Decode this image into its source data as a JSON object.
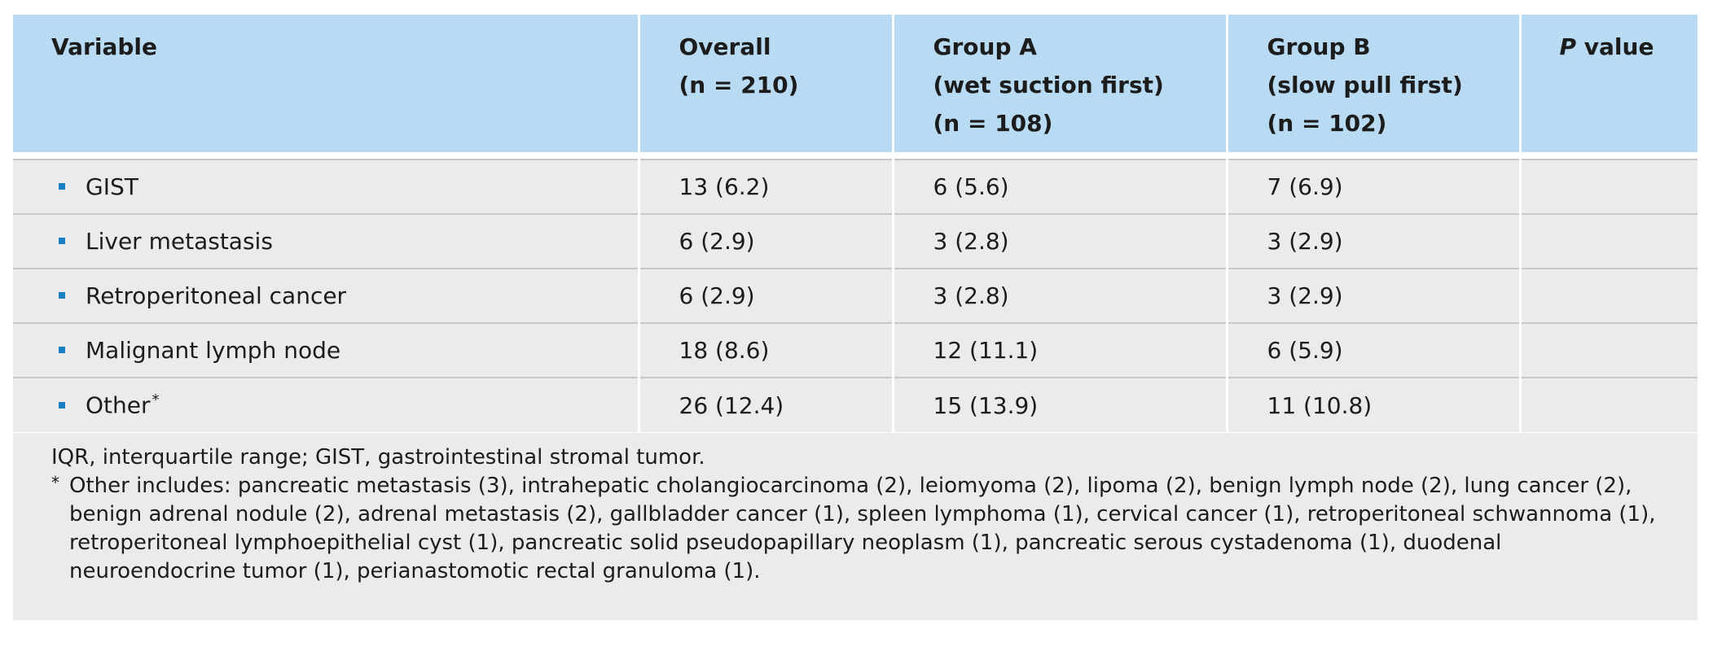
{
  "table": {
    "headers": {
      "variable": "Variable",
      "overall": {
        "line1": "Overall",
        "line2": "(n = 210)"
      },
      "group_a": {
        "line1": "Group A",
        "line2": "(wet suction first)",
        "line3": "(n = 108)"
      },
      "group_b": {
        "line1": "Group B",
        "line2": "(slow pull first)",
        "line3": "(n = 102)"
      },
      "p_value": {
        "italic": "P",
        "rest": " value"
      }
    },
    "rows": [
      {
        "variable": "GIST",
        "marker": "",
        "overall": "13 (6.2)",
        "group_a": "6 (5.6)",
        "group_b": "7 (6.9)",
        "p_value": ""
      },
      {
        "variable": "Liver metastasis",
        "marker": "",
        "overall": "6 (2.9)",
        "group_a": "3 (2.8)",
        "group_b": "3 (2.9)",
        "p_value": ""
      },
      {
        "variable": "Retroperitoneal cancer",
        "marker": "",
        "overall": "6 (2.9)",
        "group_a": "3 (2.8)",
        "group_b": "3 (2.9)",
        "p_value": ""
      },
      {
        "variable": "Malignant lymph node",
        "marker": "",
        "overall": "18 (8.6)",
        "group_a": "12 (11.1)",
        "group_b": "6 (5.9)",
        "p_value": ""
      },
      {
        "variable": "Other",
        "marker": "*",
        "overall": "26 (12.4)",
        "group_a": "15 (13.9)",
        "group_b": "11 (10.8)",
        "p_value": ""
      }
    ]
  },
  "footnotes": {
    "abbreviations": "IQR, interquartile range; GIST, gastrointestinal stromal tumor.",
    "other_marker": "*",
    "other_text": "Other includes: pancreatic metastasis (3), intrahepatic cholangiocarcinoma (2), leiomyoma (2), lipoma (2), benign lymph node (2), lung cancer (2), benign adrenal nodule (2), adrenal metastasis (2), gallbladder cancer (1), spleen lymphoma (1), cervical cancer (1), retroperitoneal schwannoma (1), retroperitoneal lymphoepithelial cyst (1), pancreatic solid pseudopapillary neoplasm (1), pancreatic serous cystadenoma (1), duodenal neuroendocrine tumor (1), perianastomotic rectal granuloma (1)."
  },
  "colors": {
    "header_bg": "#b8dbf3",
    "body_bg": "#ebebeb",
    "bullet": "#1b7fc3",
    "row_divider": "#c8c8c8"
  }
}
